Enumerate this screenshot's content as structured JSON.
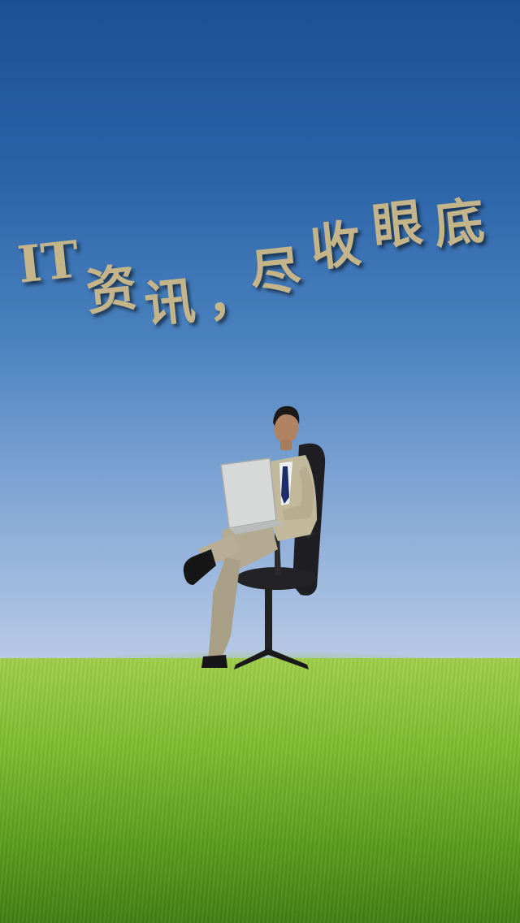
{
  "splash": {
    "slogan": [
      "IT",
      "资",
      "讯",
      "，",
      "尽",
      "收",
      "眼",
      "底"
    ]
  },
  "illustration": {
    "subject": "businessman-with-laptop-on-chair"
  },
  "colors": {
    "sky_top": "#1d4f96",
    "sky_bottom": "#bccde7",
    "grass": "#7dbb2e",
    "slogan_text": "#c4b48a"
  }
}
